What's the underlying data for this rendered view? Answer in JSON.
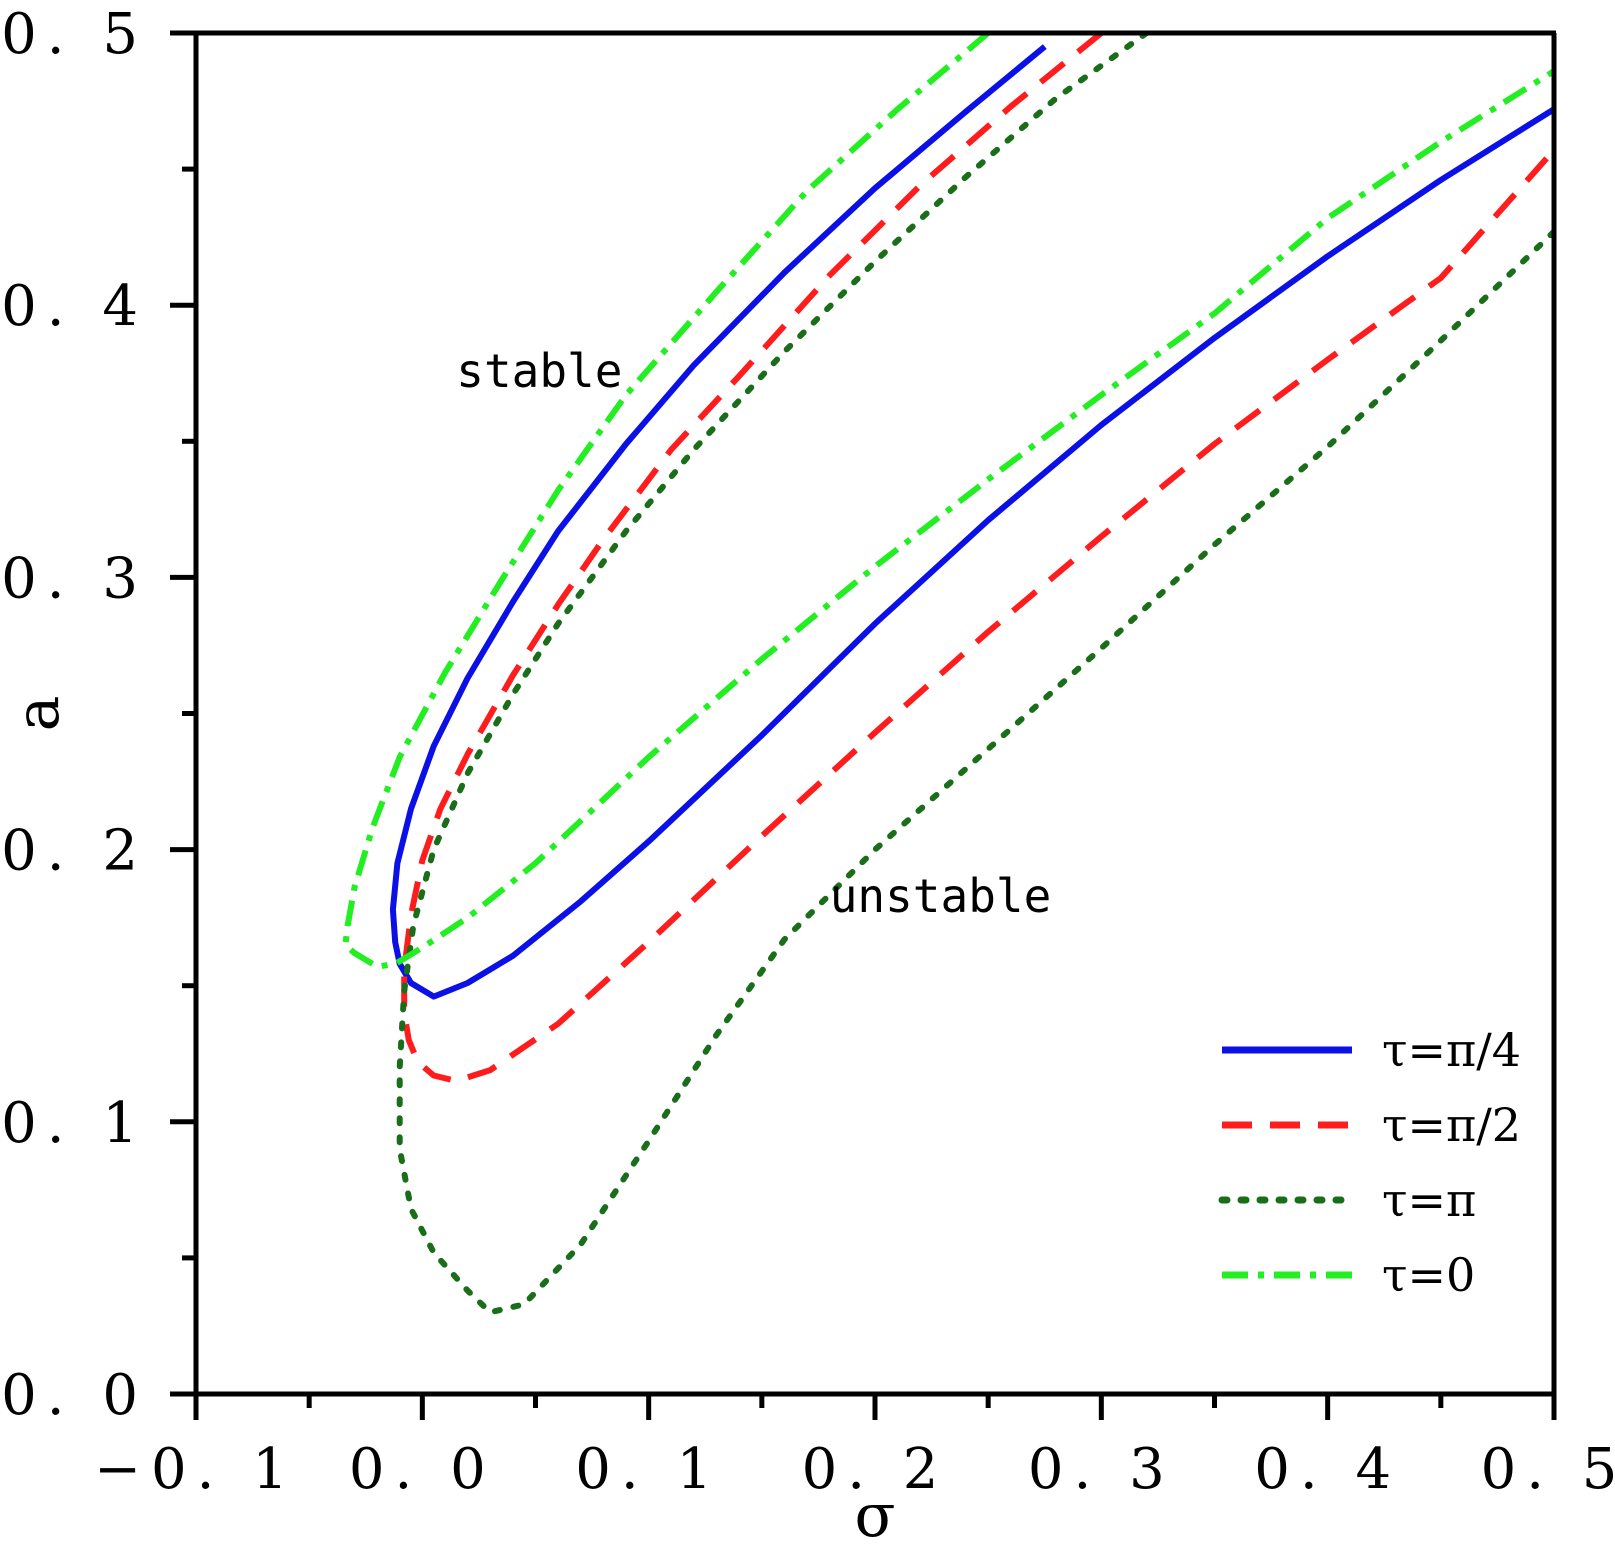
{
  "chart_data": {
    "type": "line",
    "title": "",
    "xlabel": "σ",
    "ylabel": "a",
    "xlim": [
      -0.1,
      0.5
    ],
    "ylim": [
      0.0,
      0.5
    ],
    "xticks": [
      {
        "value": -0.1,
        "label": "−0. 1"
      },
      {
        "value": 0.0,
        "label": "0. 0"
      },
      {
        "value": 0.1,
        "label": "0. 1"
      },
      {
        "value": 0.2,
        "label": "0. 2"
      },
      {
        "value": 0.3,
        "label": "0. 3"
      },
      {
        "value": 0.4,
        "label": "0. 4"
      },
      {
        "value": 0.5,
        "label": "0. 5"
      }
    ],
    "yticks": [
      {
        "value": 0.0,
        "label": "0. 0"
      },
      {
        "value": 0.1,
        "label": "0. 1"
      },
      {
        "value": 0.2,
        "label": "0. 2"
      },
      {
        "value": 0.3,
        "label": "0. 3"
      },
      {
        "value": 0.4,
        "label": "0. 4"
      },
      {
        "value": 0.5,
        "label": "0. 5"
      }
    ],
    "x_minor_step": 0.05,
    "y_minor_step": 0.05,
    "grid": false,
    "legend_position": "bottom-right",
    "annotations": [
      {
        "text": "stable",
        "x": 0.015,
        "y": 0.37
      },
      {
        "text": "unstable",
        "x": 0.18,
        "y": 0.177
      }
    ],
    "series": [
      {
        "name": "τ=π/4",
        "color": "#0a10e6",
        "style": "solid",
        "x": [
          0.275,
          0.24,
          0.2,
          0.16,
          0.12,
          0.09,
          0.06,
          0.04,
          0.02,
          0.005,
          -0.005,
          -0.011,
          -0.013,
          -0.012,
          -0.01,
          -0.005,
          0.005,
          0.02,
          0.04,
          0.07,
          0.1,
          0.15,
          0.2,
          0.25,
          0.3,
          0.35,
          0.4,
          0.45,
          0.5
        ],
        "y": [
          0.495,
          0.471,
          0.443,
          0.412,
          0.378,
          0.349,
          0.317,
          0.291,
          0.263,
          0.238,
          0.215,
          0.195,
          0.178,
          0.166,
          0.158,
          0.151,
          0.146,
          0.151,
          0.161,
          0.181,
          0.203,
          0.242,
          0.283,
          0.321,
          0.356,
          0.388,
          0.418,
          0.446,
          0.472
        ]
      },
      {
        "name": "τ=π/2",
        "color": "#ff1c1c",
        "style": "dashed",
        "x": [
          0.3,
          0.26,
          0.22,
          0.18,
          0.14,
          0.11,
          0.08,
          0.06,
          0.04,
          0.02,
          0.008,
          0.0,
          -0.005,
          -0.008,
          -0.008,
          -0.006,
          -0.002,
          0.005,
          0.015,
          0.03,
          0.06,
          0.1,
          0.15,
          0.2,
          0.25,
          0.3,
          0.35,
          0.4,
          0.45,
          0.5
        ],
        "y": [
          0.5,
          0.473,
          0.444,
          0.411,
          0.374,
          0.347,
          0.314,
          0.29,
          0.264,
          0.235,
          0.215,
          0.196,
          0.176,
          0.156,
          0.14,
          0.13,
          0.122,
          0.117,
          0.115,
          0.119,
          0.136,
          0.166,
          0.205,
          0.243,
          0.28,
          0.315,
          0.349,
          0.38,
          0.41,
          0.457
        ]
      },
      {
        "name": "τ=π",
        "color": "#1a6e1a",
        "style": "dotted",
        "x": [
          0.32,
          0.28,
          0.24,
          0.2,
          0.16,
          0.12,
          0.09,
          0.06,
          0.04,
          0.02,
          0.005,
          -0.004,
          -0.008,
          -0.01,
          -0.01,
          -0.005,
          0.005,
          0.02,
          0.03,
          0.045,
          0.07,
          0.1,
          0.13,
          0.16,
          0.2,
          0.25,
          0.3,
          0.35,
          0.4,
          0.45,
          0.5
        ],
        "y": [
          0.5,
          0.476,
          0.447,
          0.416,
          0.383,
          0.347,
          0.317,
          0.283,
          0.257,
          0.228,
          0.2,
          0.172,
          0.148,
          0.12,
          0.09,
          0.068,
          0.052,
          0.038,
          0.03,
          0.033,
          0.055,
          0.093,
          0.132,
          0.167,
          0.2,
          0.237,
          0.274,
          0.312,
          0.348,
          0.387,
          0.427
        ]
      },
      {
        "name": "τ=0",
        "color": "#22ee22",
        "style": "dashdot",
        "x": [
          0.25,
          0.21,
          0.17,
          0.13,
          0.09,
          0.06,
          0.035,
          0.01,
          -0.01,
          -0.022,
          -0.03,
          -0.033,
          -0.034,
          -0.03,
          -0.02,
          -0.012,
          -0.006,
          0.0,
          0.02,
          0.05,
          0.1,
          0.15,
          0.2,
          0.25,
          0.3,
          0.35,
          0.4,
          0.45,
          0.5
        ],
        "y": [
          0.5,
          0.472,
          0.442,
          0.405,
          0.367,
          0.332,
          0.299,
          0.265,
          0.234,
          0.208,
          0.186,
          0.172,
          0.165,
          0.162,
          0.157,
          0.158,
          0.161,
          0.164,
          0.175,
          0.195,
          0.234,
          0.27,
          0.304,
          0.336,
          0.367,
          0.397,
          0.432,
          0.46,
          0.486
        ]
      }
    ]
  }
}
